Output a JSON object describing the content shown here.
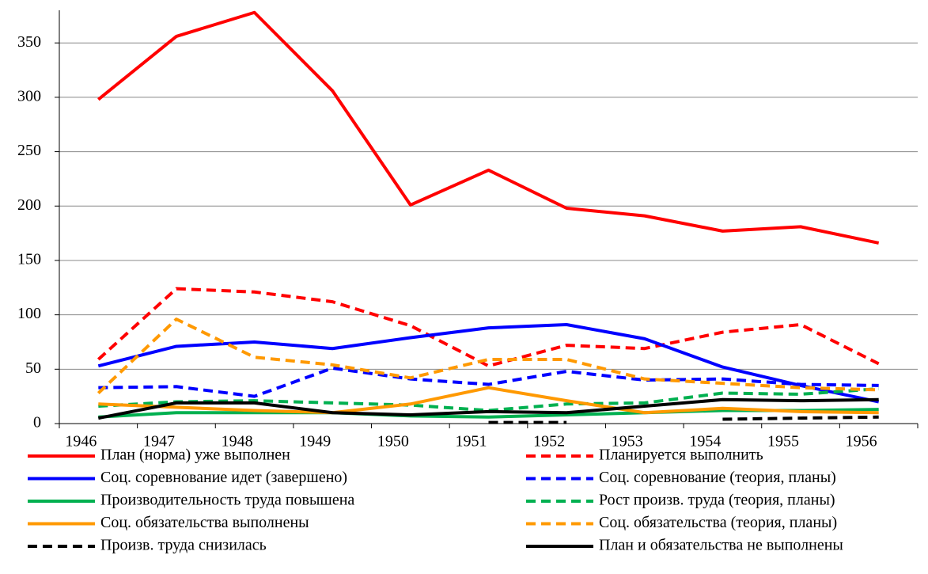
{
  "chart_data": {
    "type": "line",
    "categories": [
      "1946",
      "1947",
      "1948",
      "1949",
      "1950",
      "1951",
      "1952",
      "1953",
      "1954",
      "1955",
      "1956"
    ],
    "ylim": [
      0,
      380
    ],
    "yticks": [
      0,
      50,
      100,
      150,
      200,
      250,
      300,
      350
    ],
    "grid": true,
    "series": [
      {
        "name": "План (норма) уже выполнен",
        "color": "#ff0000",
        "dashed": false,
        "values": [
          298,
          356,
          378,
          306,
          201,
          233,
          198,
          191,
          177,
          181,
          166
        ]
      },
      {
        "name": "Планируется выполнить",
        "color": "#ff0000",
        "dashed": true,
        "values": [
          59,
          124,
          121,
          112,
          90,
          53,
          72,
          69,
          84,
          91,
          55
        ]
      },
      {
        "name": "Соц. соревнование идет (завершено)",
        "color": "#0000ff",
        "dashed": false,
        "values": [
          53,
          71,
          75,
          69,
          79,
          88,
          91,
          78,
          52,
          35,
          20
        ]
      },
      {
        "name": "Соц. соревнование (теория, планы)",
        "color": "#0000ff",
        "dashed": true,
        "values": [
          33,
          34,
          25,
          51,
          41,
          36,
          48,
          40,
          41,
          36,
          35
        ]
      },
      {
        "name": "Производительность труда повышена",
        "color": "#00b050",
        "dashed": false,
        "values": [
          6,
          10,
          10,
          10,
          7,
          6,
          8,
          10,
          12,
          12,
          13
        ]
      },
      {
        "name": "Рост произв. труда (теория, планы)",
        "color": "#00b050",
        "dashed": true,
        "values": [
          16,
          20,
          21,
          19,
          17,
          12,
          18,
          19,
          28,
          27,
          32
        ]
      },
      {
        "name": "Соц. обязательства выполнены",
        "color": "#ff9900",
        "dashed": false,
        "values": [
          18,
          15,
          12,
          10,
          18,
          33,
          21,
          10,
          14,
          11,
          10
        ]
      },
      {
        "name": "Соц. обязательства (теория, планы)",
        "color": "#ff9900",
        "dashed": true,
        "values": [
          28,
          96,
          61,
          54,
          42,
          59,
          59,
          41,
          37,
          33,
          31
        ]
      },
      {
        "name": "Произв. труда снизилась",
        "color": "#000000",
        "dashed": true,
        "values": [
          null,
          null,
          null,
          null,
          null,
          1,
          1,
          null,
          4,
          5,
          6
        ]
      },
      {
        "name": "План и обязательства не выполнены",
        "color": "#000000",
        "dashed": false,
        "values": [
          5,
          19,
          19,
          10,
          8,
          11,
          10,
          16,
          22,
          21,
          22
        ]
      }
    ]
  }
}
